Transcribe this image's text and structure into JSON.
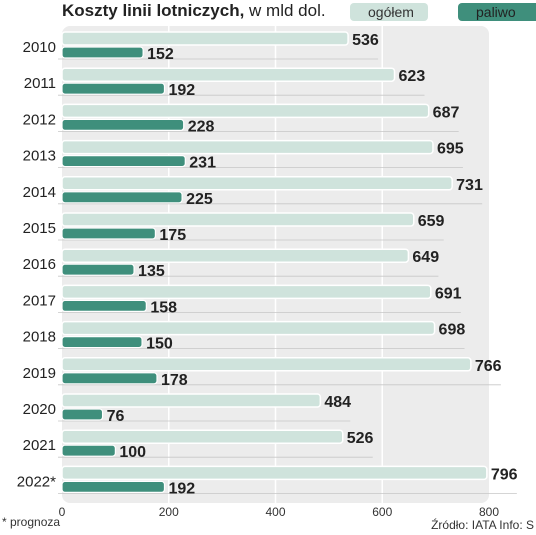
{
  "title": {
    "bold": "Koszty linii lotniczych,",
    "normal": "w mld dol."
  },
  "legend": {
    "total": "ogółem",
    "fuel": "paliwo"
  },
  "footnote": "* prognoza",
  "source": "Źródło: IATA   Info: S",
  "colors": {
    "total": "#cfe3dc",
    "fuel": "#3f8f7c",
    "background": "#ececec"
  },
  "chart_data": {
    "type": "bar",
    "orientation": "horizontal",
    "categories": [
      "2010",
      "2011",
      "2012",
      "2013",
      "2014",
      "2015",
      "2016",
      "2017",
      "2018",
      "2019",
      "2020",
      "2021",
      "2022*"
    ],
    "series": [
      {
        "name": "ogółem",
        "values": [
          536,
          623,
          687,
          695,
          731,
          659,
          649,
          691,
          698,
          766,
          484,
          526,
          796
        ]
      },
      {
        "name": "paliwo",
        "values": [
          152,
          192,
          228,
          231,
          225,
          175,
          135,
          158,
          150,
          178,
          76,
          100,
          192
        ]
      }
    ],
    "xlim": [
      0,
      800
    ],
    "xticks": [
      0,
      200,
      400,
      600,
      800
    ],
    "grid": true
  }
}
